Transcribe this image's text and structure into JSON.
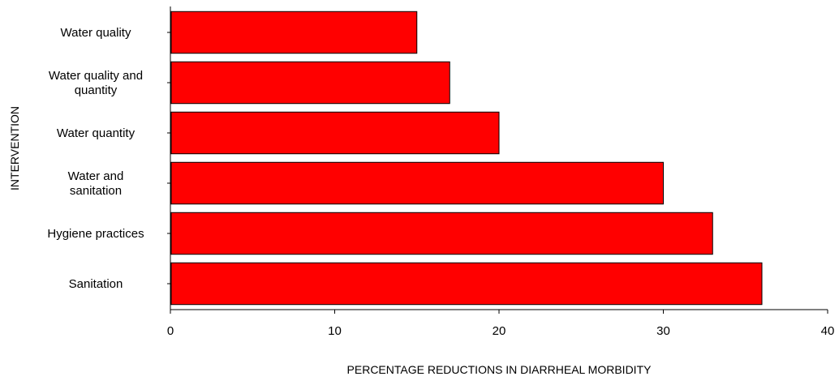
{
  "chart_data": {
    "type": "bar",
    "orientation": "horizontal",
    "categories": [
      "Water quality",
      "Water quality and quantity",
      "Water quantity",
      "Water and sanitation",
      "Hygiene practices",
      "Sanitation"
    ],
    "category_lines": [
      [
        "Water quality"
      ],
      [
        "Water quality and",
        "quantity"
      ],
      [
        "Water quantity"
      ],
      [
        "Water and",
        "sanitation"
      ],
      [
        "Hygiene practices"
      ],
      [
        "Sanitation"
      ]
    ],
    "values": [
      15,
      17,
      20,
      30,
      33,
      36
    ],
    "xlabel": "PERCENTAGE REDUCTIONS IN DIARRHEAL MORBIDITY",
    "ylabel": "INTERVENTION",
    "xlim": [
      0,
      40
    ],
    "xticks": [
      0,
      10,
      20,
      30,
      40
    ],
    "grid": false,
    "legend": "none",
    "colors": {
      "bar_fill": "#ff0000",
      "bar_stroke": "#000000",
      "axis": "#000000"
    }
  }
}
